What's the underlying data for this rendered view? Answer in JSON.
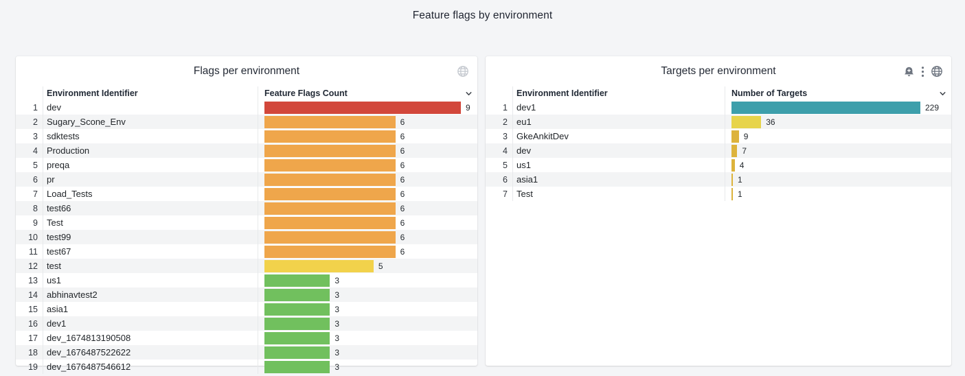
{
  "page_title": "Feature flags by environment",
  "palette": {
    "red": "#d2473b",
    "orange": "#efa64b",
    "yellow": "#f2d24b",
    "green": "#71c05e",
    "teal": "#3d9fab",
    "light_yellow": "#e7d44b",
    "gold": "#ddb33c",
    "stripe": "#f3f4f5",
    "page_background": "#f4f5f7"
  },
  "panels": [
    {
      "title": "Flags per environment",
      "icons": [
        "globe-icon"
      ],
      "columns": {
        "name": "Environment Identifier",
        "value": "Feature Flags Count"
      },
      "chart_type": "bar-gauge-table",
      "max_value": 9,
      "rows": [
        {
          "rank": 1,
          "name": "dev",
          "value": 9,
          "color": "red"
        },
        {
          "rank": 2,
          "name": "Sugary_Scone_Env",
          "value": 6,
          "color": "orange"
        },
        {
          "rank": 3,
          "name": "sdktests",
          "value": 6,
          "color": "orange"
        },
        {
          "rank": 4,
          "name": "Production",
          "value": 6,
          "color": "orange"
        },
        {
          "rank": 5,
          "name": "preqa",
          "value": 6,
          "color": "orange"
        },
        {
          "rank": 6,
          "name": "pr",
          "value": 6,
          "color": "orange"
        },
        {
          "rank": 7,
          "name": "Load_Tests",
          "value": 6,
          "color": "orange"
        },
        {
          "rank": 8,
          "name": "test66",
          "value": 6,
          "color": "orange"
        },
        {
          "rank": 9,
          "name": "Test",
          "value": 6,
          "color": "orange"
        },
        {
          "rank": 10,
          "name": "test99",
          "value": 6,
          "color": "orange"
        },
        {
          "rank": 11,
          "name": "test67",
          "value": 6,
          "color": "orange"
        },
        {
          "rank": 12,
          "name": "test",
          "value": 5,
          "color": "yellow"
        },
        {
          "rank": 13,
          "name": "us1",
          "value": 3,
          "color": "green"
        },
        {
          "rank": 14,
          "name": "abhinavtest2",
          "value": 3,
          "color": "green"
        },
        {
          "rank": 15,
          "name": "asia1",
          "value": 3,
          "color": "green"
        },
        {
          "rank": 16,
          "name": "dev1",
          "value": 3,
          "color": "green"
        },
        {
          "rank": 17,
          "name": "dev_1674813190508",
          "value": 3,
          "color": "green"
        },
        {
          "rank": 18,
          "name": "dev_1676487522622",
          "value": 3,
          "color": "green"
        },
        {
          "rank": 19,
          "name": "dev_1676487546612",
          "value": 3,
          "color": "green"
        }
      ]
    },
    {
      "title": "Targets per environment",
      "icons": [
        "bell-plus-icon",
        "kebab-menu-icon",
        "globe-icon"
      ],
      "columns": {
        "name": "Environment Identifier",
        "value": "Number of Targets"
      },
      "chart_type": "bar-gauge-table",
      "max_value": 229,
      "rows": [
        {
          "rank": 1,
          "name": "dev1",
          "value": 229,
          "color": "teal"
        },
        {
          "rank": 2,
          "name": "eu1",
          "value": 36,
          "color": "light_yellow"
        },
        {
          "rank": 3,
          "name": "GkeAnkitDev",
          "value": 9,
          "color": "gold"
        },
        {
          "rank": 4,
          "name": "dev",
          "value": 7,
          "color": "gold"
        },
        {
          "rank": 5,
          "name": "us1",
          "value": 4,
          "color": "gold"
        },
        {
          "rank": 6,
          "name": "asia1",
          "value": 1,
          "color": "gold"
        },
        {
          "rank": 7,
          "name": "Test",
          "value": 1,
          "color": "gold"
        }
      ]
    }
  ]
}
